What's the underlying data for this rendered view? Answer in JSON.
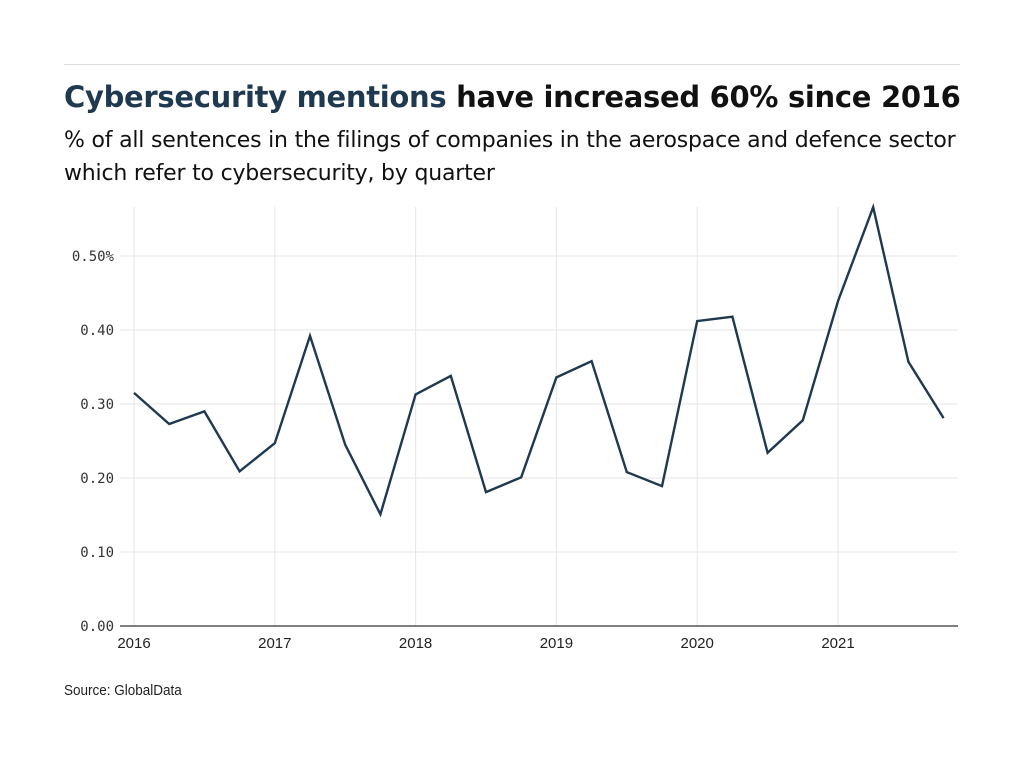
{
  "header": {
    "title_highlight": "Cybersecurity mentions",
    "title_rest": " have increased 60% since 2016",
    "subtitle": "% of all sentences in the filings of companies in the aerospace and defence sector which refer to cybersecurity, by quarter"
  },
  "footer": {
    "source": "Source: GlobalData"
  },
  "colors": {
    "line": "#1e3950",
    "title_highlight": "#1e3950",
    "grid": "#e6e6e6",
    "axis": "#555555"
  },
  "chart_data": {
    "type": "line",
    "title": "Cybersecurity mentions have increased 60% since 2016",
    "subtitle": "% of all sentences in the filings of companies in the aerospace and defence sector which refer to cybersecurity, by quarter",
    "xlabel": "",
    "ylabel": "",
    "x": [
      "2016 Q1",
      "2016 Q2",
      "2016 Q3",
      "2016 Q4",
      "2017 Q1",
      "2017 Q2",
      "2017 Q3",
      "2017 Q4",
      "2018 Q1",
      "2018 Q2",
      "2018 Q3",
      "2018 Q4",
      "2019 Q1",
      "2019 Q2",
      "2019 Q3",
      "2019 Q4",
      "2020 Q1",
      "2020 Q2",
      "2020 Q3",
      "2020 Q4",
      "2021 Q1",
      "2021 Q2",
      "2021 Q3",
      "2021 Q4"
    ],
    "series": [
      {
        "name": "Cybersecurity mentions (%)",
        "values": [
          0.315,
          0.273,
          0.29,
          0.209,
          0.247,
          0.392,
          0.245,
          0.151,
          0.313,
          0.338,
          0.181,
          0.201,
          0.336,
          0.358,
          0.208,
          0.189,
          0.412,
          0.418,
          0.234,
          0.278,
          0.439,
          0.566,
          0.357,
          0.281
        ]
      }
    ],
    "x_tick_labels": [
      "2016",
      "2017",
      "2018",
      "2019",
      "2020",
      "2021"
    ],
    "y_ticks": [
      0,
      0.1,
      0.2,
      0.3,
      0.4,
      0.5
    ],
    "y_tick_labels": [
      "0.00",
      "0.10",
      "0.20",
      "0.30",
      "0.40",
      "0.50%"
    ],
    "ylim": [
      0,
      0.57
    ],
    "grid": true,
    "legend": "none"
  }
}
